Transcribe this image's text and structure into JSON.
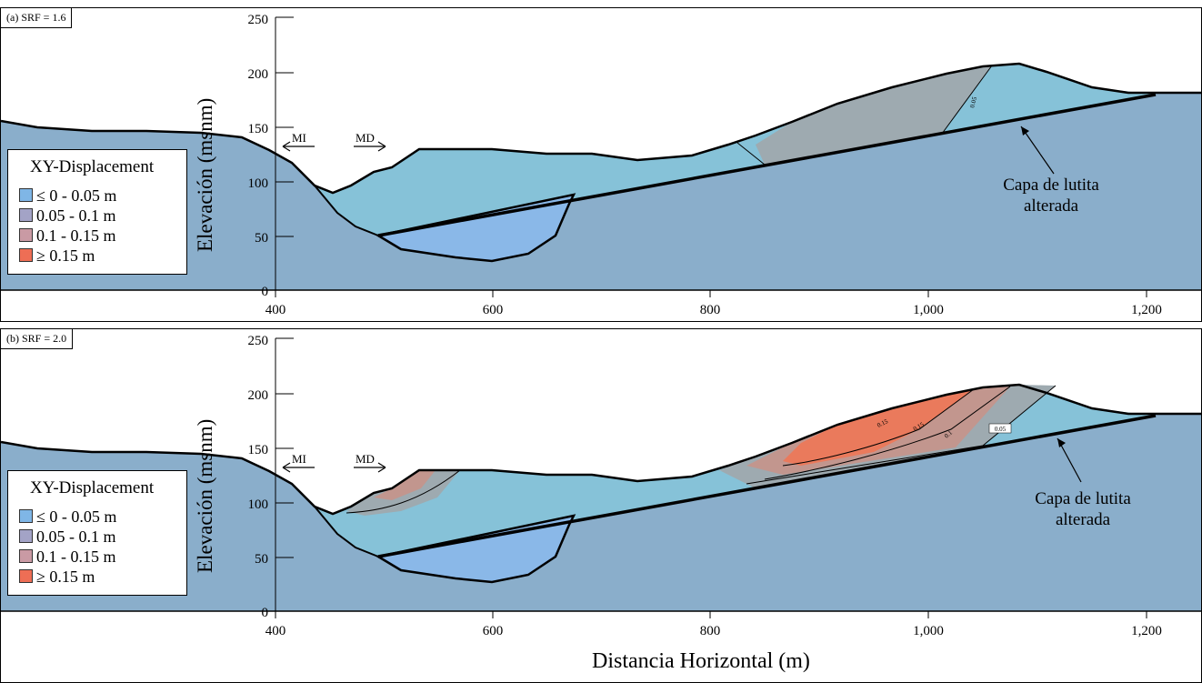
{
  "panels": [
    {
      "id": "a",
      "tag": "(a) SRF = 1.6",
      "ylabel": "Elevación (msnm)",
      "yticks": [
        "250",
        "200",
        "150",
        "100",
        "50",
        "0"
      ],
      "xticks": [
        "400",
        "600",
        "800",
        "1,000",
        "1,200"
      ],
      "label_mi": "MI",
      "label_md": "MD",
      "shale_note_line1": "Capa de lutita",
      "shale_note_line2": "alterada",
      "contour_labels": [
        "0.05"
      ]
    },
    {
      "id": "b",
      "tag": "(b) SRF = 2.0",
      "ylabel": "Elevación (msnm)",
      "yticks": [
        "250",
        "200",
        "150",
        "100",
        "50",
        "0"
      ],
      "xticks": [
        "400",
        "600",
        "800",
        "1,000",
        "1,200"
      ],
      "label_mi": "MI",
      "label_md": "MD",
      "shale_note_line1": "Capa de lutita",
      "shale_note_line2": "alterada",
      "contour_labels": [
        "0.15",
        "0.15",
        "0.1",
        "0.05"
      ]
    }
  ],
  "legend": {
    "title": "XY-Displacement",
    "items": [
      {
        "label": "≤ 0 - 0.05 m",
        "color": "#7fb6e6"
      },
      {
        "label": "0.05 - 0.1 m",
        "color": "#a3a3c6"
      },
      {
        "label": "0.1 - 0.15 m",
        "color": "#c99aa4"
      },
      {
        "label": "≥ 0.15 m",
        "color": "#ee6e55"
      }
    ]
  },
  "xaxis_title": "Distancia Horizontal (m)",
  "colors": {
    "bedrock": "#8aaecb",
    "slide_mass": "#86c2d8",
    "lens": "#8ab8e8",
    "disp_005_01": "#9eaab0",
    "disp_01_015": "#c2968e",
    "disp_015": "#ea7a5c"
  }
}
